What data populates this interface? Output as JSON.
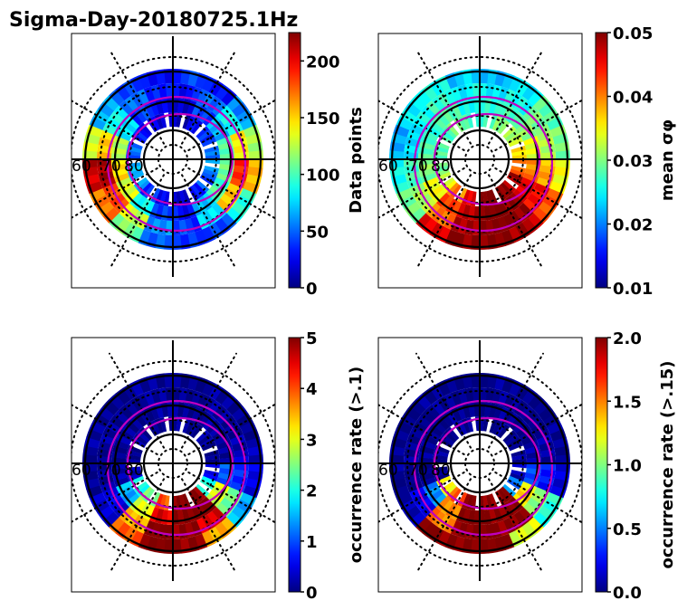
{
  "figure": {
    "title": "Sigma-Day-20180725.1Hz"
  },
  "chart_data": [
    {
      "type": "heatmap",
      "projection": "polar",
      "title": "",
      "colormap": "jet",
      "colorbar": {
        "label": "Data points",
        "range": [
          0,
          225
        ],
        "ticks": [
          0,
          50,
          100,
          150,
          200
        ],
        "tick_labels": [
          "0",
          "50",
          "100",
          "150",
          "200"
        ]
      },
      "lat_labels": [
        "60",
        "70",
        "80"
      ],
      "ring_values_sector": [
        [
          40,
          30,
          60,
          120,
          160,
          90,
          45,
          35,
          50,
          110,
          170,
          210,
          130,
          70,
          40,
          30
        ],
        [
          30,
          50,
          90,
          140,
          190,
          150,
          80,
          40,
          60,
          130,
          180,
          220,
          150,
          90,
          50,
          35
        ],
        [
          20,
          40,
          70,
          100,
          110,
          100,
          70,
          30,
          40,
          90,
          130,
          150,
          120,
          80,
          40,
          25
        ],
        [
          15,
          25,
          40,
          50,
          60,
          45,
          30,
          20,
          25,
          40,
          60,
          70,
          50,
          35,
          20,
          15
        ]
      ]
    },
    {
      "type": "heatmap",
      "projection": "polar",
      "colormap": "jet",
      "colorbar": {
        "label": "mean σφ",
        "range": [
          0.01,
          0.05
        ],
        "ticks": [
          0.01,
          0.02,
          0.03,
          0.04,
          0.05
        ],
        "tick_labels": [
          "0.01",
          "0.02",
          "0.03",
          "0.04",
          "0.05"
        ]
      },
      "lat_labels": [
        "60",
        "70",
        "80"
      ],
      "ring_values_sector": [
        [
          0.022,
          0.025,
          0.028,
          0.03,
          0.034,
          0.042,
          0.048,
          0.05,
          0.05,
          0.046,
          0.03,
          0.025,
          0.022,
          0.024,
          0.026,
          0.023
        ],
        [
          0.024,
          0.026,
          0.029,
          0.032,
          0.038,
          0.045,
          0.05,
          0.05,
          0.049,
          0.04,
          0.032,
          0.027,
          0.024,
          0.025,
          0.027,
          0.025
        ],
        [
          0.026,
          0.028,
          0.03,
          0.034,
          0.04,
          0.046,
          0.05,
          0.05,
          0.048,
          0.042,
          0.035,
          0.03,
          0.028,
          0.027,
          0.028,
          0.026
        ],
        [
          0.028,
          0.03,
          0.032,
          0.036,
          0.042,
          0.048,
          0.05,
          0.05,
          0.046,
          0.04,
          0.034,
          0.03,
          0.028,
          0.028,
          0.029,
          0.028
        ]
      ]
    },
    {
      "type": "heatmap",
      "projection": "polar",
      "colormap": "jet",
      "colorbar": {
        "label": "occurrence rate (>.1)",
        "range": [
          0,
          5
        ],
        "ticks": [
          0,
          1,
          2,
          3,
          4,
          5
        ],
        "tick_labels": [
          "0",
          "1",
          "2",
          "3",
          "4",
          "5"
        ]
      },
      "lat_labels": [
        "60",
        "70",
        "80"
      ],
      "ring_values_sector": [
        [
          0.1,
          0.1,
          0.1,
          0.2,
          0.5,
          1.5,
          3.5,
          5.0,
          5.0,
          4.0,
          0.3,
          0.1,
          0.1,
          0.1,
          0.1,
          0.1
        ],
        [
          0.1,
          0.1,
          0.1,
          0.3,
          0.8,
          2.5,
          4.5,
          5.0,
          5.0,
          3.5,
          0.5,
          0.1,
          0.1,
          0.1,
          0.1,
          0.1
        ],
        [
          0.1,
          0.1,
          0.1,
          0.2,
          1.0,
          3.0,
          5.0,
          5.0,
          4.5,
          3.0,
          1.5,
          0.2,
          0.1,
          0.1,
          0.1,
          0.1
        ],
        [
          0.1,
          0.1,
          0.1,
          0.1,
          0.5,
          2.0,
          5.0,
          5.0,
          4.0,
          2.5,
          2.0,
          0.2,
          0.1,
          0.1,
          0.1,
          0.1
        ]
      ]
    },
    {
      "type": "heatmap",
      "projection": "polar",
      "colormap": "jet",
      "colorbar": {
        "label": "occurrence rate (>.15)",
        "range": [
          0,
          2
        ],
        "ticks": [
          0.0,
          0.5,
          1.0,
          1.5,
          2.0
        ],
        "tick_labels": [
          "0.0",
          "0.5",
          "1.0",
          "1.5",
          "2.0"
        ]
      },
      "lat_labels": [
        "60",
        "70",
        "80"
      ],
      "ring_values_sector": [
        [
          0.02,
          0.02,
          0.02,
          0.02,
          0.2,
          0.8,
          1.2,
          2.0,
          2.0,
          2.0,
          0.1,
          0.02,
          0.02,
          0.02,
          0.02,
          0.02
        ],
        [
          0.02,
          0.02,
          0.02,
          0.05,
          0.3,
          1.0,
          2.0,
          2.0,
          2.0,
          1.5,
          0.2,
          0.02,
          0.02,
          0.02,
          0.02,
          0.02
        ],
        [
          0.02,
          0.02,
          0.02,
          0.05,
          0.4,
          1.3,
          2.0,
          2.0,
          2.0,
          1.5,
          0.5,
          0.02,
          0.02,
          0.02,
          0.02,
          0.02
        ],
        [
          0.02,
          0.02,
          0.02,
          0.02,
          0.1,
          0.5,
          2.0,
          2.0,
          2.0,
          1.6,
          1.2,
          0.02,
          0.02,
          0.02,
          0.02,
          0.02
        ]
      ]
    }
  ]
}
